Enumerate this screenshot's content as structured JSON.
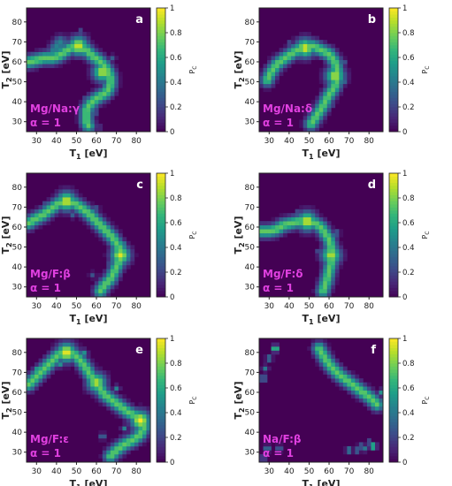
{
  "colormap": {
    "name": "viridis",
    "stops": [
      "#440154",
      "#482777",
      "#3e4a89",
      "#31688e",
      "#26828e",
      "#1f9e89",
      "#35b779",
      "#6ece58",
      "#b5de2b",
      "#fde725"
    ]
  },
  "colorbar": {
    "label": "P",
    "label_sub": "C",
    "ticks": [
      "0",
      "0.2",
      "0.4",
      "0.6",
      "0.8",
      "1"
    ],
    "tick_values": [
      0,
      0.2,
      0.4,
      0.6,
      0.8,
      1
    ]
  },
  "axes": {
    "xlabel": "T",
    "xlabel_sub": "1",
    "xlabel_unit": " [eV]",
    "ylabel": "T",
    "ylabel_sub": "2",
    "ylabel_unit": " [eV]",
    "xticks": [
      "30",
      "40",
      "50",
      "60",
      "70",
      "80"
    ],
    "xtick_values": [
      30,
      40,
      50,
      60,
      70,
      80
    ],
    "yticks": [
      "30",
      "40",
      "50",
      "60",
      "70",
      "80"
    ],
    "ytick_values": [
      30,
      40,
      50,
      60,
      70,
      80
    ],
    "xlim": [
      25,
      87
    ],
    "ylim": [
      25,
      87
    ]
  },
  "annotation_color": "#e040e0",
  "chart_data": [
    {
      "type": "heatmap",
      "panel_letter": "a",
      "label_line1": "Mg/Na:γ",
      "label_line2": "α = 1",
      "grid_step": 2,
      "curve": [
        [
          26,
          60
        ],
        [
          30,
          61
        ],
        [
          34,
          62
        ],
        [
          38,
          62
        ],
        [
          41,
          63
        ],
        [
          44,
          65
        ],
        [
          47,
          67
        ],
        [
          51,
          68
        ],
        [
          55,
          66
        ],
        [
          58,
          63
        ],
        [
          61,
          61
        ],
        [
          64,
          58
        ],
        [
          66,
          55
        ],
        [
          67,
          52
        ],
        [
          67,
          49
        ],
        [
          66,
          46
        ],
        [
          64,
          44
        ],
        [
          62,
          43
        ],
        [
          59,
          41
        ],
        [
          57,
          39
        ],
        [
          55,
          36
        ],
        [
          55,
          33
        ],
        [
          55,
          30
        ],
        [
          56,
          28
        ]
      ],
      "bar_curve": [
        [
          37,
          61
        ],
        [
          39,
          66
        ],
        [
          42,
          70
        ]
      ],
      "blobs": [
        [
          51,
          68,
          0.95
        ],
        [
          63,
          55,
          0.9
        ]
      ],
      "scatter": [
        [
          57,
          66,
          0.35
        ],
        [
          52,
          75,
          0.3
        ],
        [
          68,
          62,
          0.3
        ],
        [
          70,
          53,
          0.35
        ],
        [
          55,
          42,
          0.3
        ],
        [
          38,
          68,
          0.25
        ],
        [
          60,
          35,
          0.3
        ],
        [
          61,
          27,
          0.25
        ]
      ]
    },
    {
      "type": "heatmap",
      "panel_letter": "b",
      "label_line1": "Mg/Na:δ",
      "label_line2": "α = 1",
      "grid_step": 2,
      "curve": [
        [
          29,
          51
        ],
        [
          31,
          55
        ],
        [
          34,
          59
        ],
        [
          38,
          62
        ],
        [
          41,
          64
        ],
        [
          44,
          66
        ],
        [
          48,
          68
        ],
        [
          52,
          68
        ],
        [
          56,
          66
        ],
        [
          60,
          64
        ],
        [
          63,
          60
        ],
        [
          64,
          56
        ],
        [
          64,
          52
        ],
        [
          63,
          48
        ],
        [
          61,
          45
        ],
        [
          59,
          42
        ],
        [
          57,
          38
        ],
        [
          55,
          35
        ],
        [
          53,
          32
        ],
        [
          51,
          29
        ]
      ],
      "bar_curve": [],
      "blobs": [
        [
          48,
          67,
          0.95
        ],
        [
          63,
          53,
          0.9
        ]
      ],
      "scatter": [
        [
          40,
          69,
          0.3
        ],
        [
          67,
          60,
          0.35
        ],
        [
          68,
          50,
          0.3
        ],
        [
          45,
          62,
          0.3
        ],
        [
          61,
          38,
          0.25
        ],
        [
          56,
          32,
          0.25
        ]
      ]
    },
    {
      "type": "heatmap",
      "panel_letter": "c",
      "label_line1": "Mg/F:β",
      "label_line2": "α = 1",
      "grid_step": 2,
      "curve": [
        [
          26,
          62
        ],
        [
          29,
          64
        ],
        [
          33,
          66
        ],
        [
          37,
          69
        ],
        [
          41,
          72
        ],
        [
          45,
          73
        ],
        [
          49,
          72
        ],
        [
          52,
          70
        ],
        [
          56,
          67
        ],
        [
          60,
          63
        ],
        [
          64,
          59
        ],
        [
          68,
          55
        ],
        [
          70,
          52
        ],
        [
          72,
          49
        ],
        [
          72,
          45
        ],
        [
          71,
          42
        ],
        [
          69,
          38
        ],
        [
          67,
          34
        ],
        [
          64,
          31
        ],
        [
          62,
          28
        ]
      ],
      "bar_curve": [],
      "blobs": [
        [
          45,
          73,
          0.95
        ],
        [
          72,
          46,
          0.95
        ]
      ],
      "scatter": [
        [
          35,
          72,
          0.3
        ],
        [
          60,
          69,
          0.35
        ],
        [
          74,
          52,
          0.35
        ],
        [
          66,
          41,
          0.3
        ],
        [
          58,
          36,
          0.25
        ],
        [
          48,
          66,
          0.3
        ]
      ]
    },
    {
      "type": "heatmap",
      "panel_letter": "d",
      "label_line1": "Mg/F:δ",
      "label_line2": "α = 1",
      "grid_step": 2,
      "curve": [
        [
          26,
          58
        ],
        [
          30,
          58
        ],
        [
          34,
          59
        ],
        [
          37,
          61
        ],
        [
          41,
          62
        ],
        [
          45,
          63
        ],
        [
          49,
          63
        ],
        [
          53,
          62
        ],
        [
          56,
          60
        ],
        [
          58,
          57
        ],
        [
          60,
          54
        ],
        [
          61,
          50
        ],
        [
          62,
          46
        ],
        [
          61,
          42
        ],
        [
          60,
          38
        ],
        [
          59,
          34
        ],
        [
          58,
          31
        ],
        [
          57,
          28
        ]
      ],
      "bar_curve": [],
      "blobs": [
        [
          49,
          63,
          0.95
        ],
        [
          61,
          46,
          0.9
        ]
      ],
      "scatter": [
        [
          44,
          67,
          0.3
        ],
        [
          64,
          57,
          0.35
        ],
        [
          55,
          48,
          0.3
        ],
        [
          56,
          35,
          0.3
        ],
        [
          62,
          32,
          0.25
        ]
      ]
    },
    {
      "type": "heatmap",
      "panel_letter": "e",
      "label_line1": "Mg/F:ε",
      "label_line2": "α = 1",
      "grid_step": 2,
      "curve": [
        [
          26,
          64
        ],
        [
          29,
          67
        ],
        [
          32,
          70
        ],
        [
          35,
          73
        ],
        [
          38,
          76
        ],
        [
          41,
          79
        ],
        [
          45,
          80
        ],
        [
          49,
          79
        ],
        [
          52,
          76
        ],
        [
          55,
          72
        ],
        [
          58,
          67
        ],
        [
          61,
          63
        ],
        [
          64,
          59
        ],
        [
          68,
          56
        ],
        [
          72,
          53
        ],
        [
          76,
          50
        ],
        [
          80,
          48
        ],
        [
          83,
          46
        ],
        [
          84,
          43
        ],
        [
          82,
          39
        ],
        [
          78,
          36
        ],
        [
          74,
          34
        ],
        [
          70,
          31
        ],
        [
          67,
          28
        ]
      ],
      "bar_curve": [],
      "blobs": [
        [
          45,
          80,
          1.0
        ],
        [
          82,
          46,
          1.0
        ],
        [
          60,
          65,
          0.9
        ]
      ],
      "scatter": [
        [
          30,
          72,
          0.5
        ],
        [
          54,
          80,
          0.5
        ],
        [
          70,
          62,
          0.45
        ],
        [
          74,
          42,
          0.45
        ],
        [
          63,
          38,
          0.4
        ],
        [
          42,
          74,
          0.5
        ]
      ]
    },
    {
      "type": "heatmap",
      "panel_letter": "f",
      "label_line1": "Na/F:β",
      "label_line2": "α = 1",
      "grid_step": 2,
      "curve": [
        [
          55,
          82
        ],
        [
          58,
          77
        ],
        [
          61,
          73
        ],
        [
          65,
          69
        ],
        [
          69,
          66
        ],
        [
          73,
          63
        ],
        [
          77,
          60
        ],
        [
          81,
          57
        ],
        [
          84,
          54
        ]
      ],
      "bar_curve": [],
      "blobs": [],
      "scatter": [
        [
          33,
          82,
          0.9
        ],
        [
          30,
          77,
          0.45
        ],
        [
          28,
          72,
          0.4
        ],
        [
          27,
          67,
          0.5
        ],
        [
          55,
          82,
          1.0
        ],
        [
          57,
          78,
          0.95
        ],
        [
          63,
          70,
          0.95
        ],
        [
          69,
          66,
          0.95
        ],
        [
          71,
          64,
          0.9
        ],
        [
          77,
          60,
          0.9
        ],
        [
          83,
          55,
          0.95
        ],
        [
          82,
          33,
          0.85
        ],
        [
          78,
          32,
          0.4
        ],
        [
          74,
          31,
          0.4
        ],
        [
          70,
          31,
          0.5
        ],
        [
          35,
          32,
          0.35
        ],
        [
          29,
          32,
          0.45
        ],
        [
          80,
          35,
          0.3
        ],
        [
          76,
          33,
          0.35
        ],
        [
          27,
          27,
          0.35
        ],
        [
          86,
          60,
          0.5
        ]
      ]
    }
  ]
}
